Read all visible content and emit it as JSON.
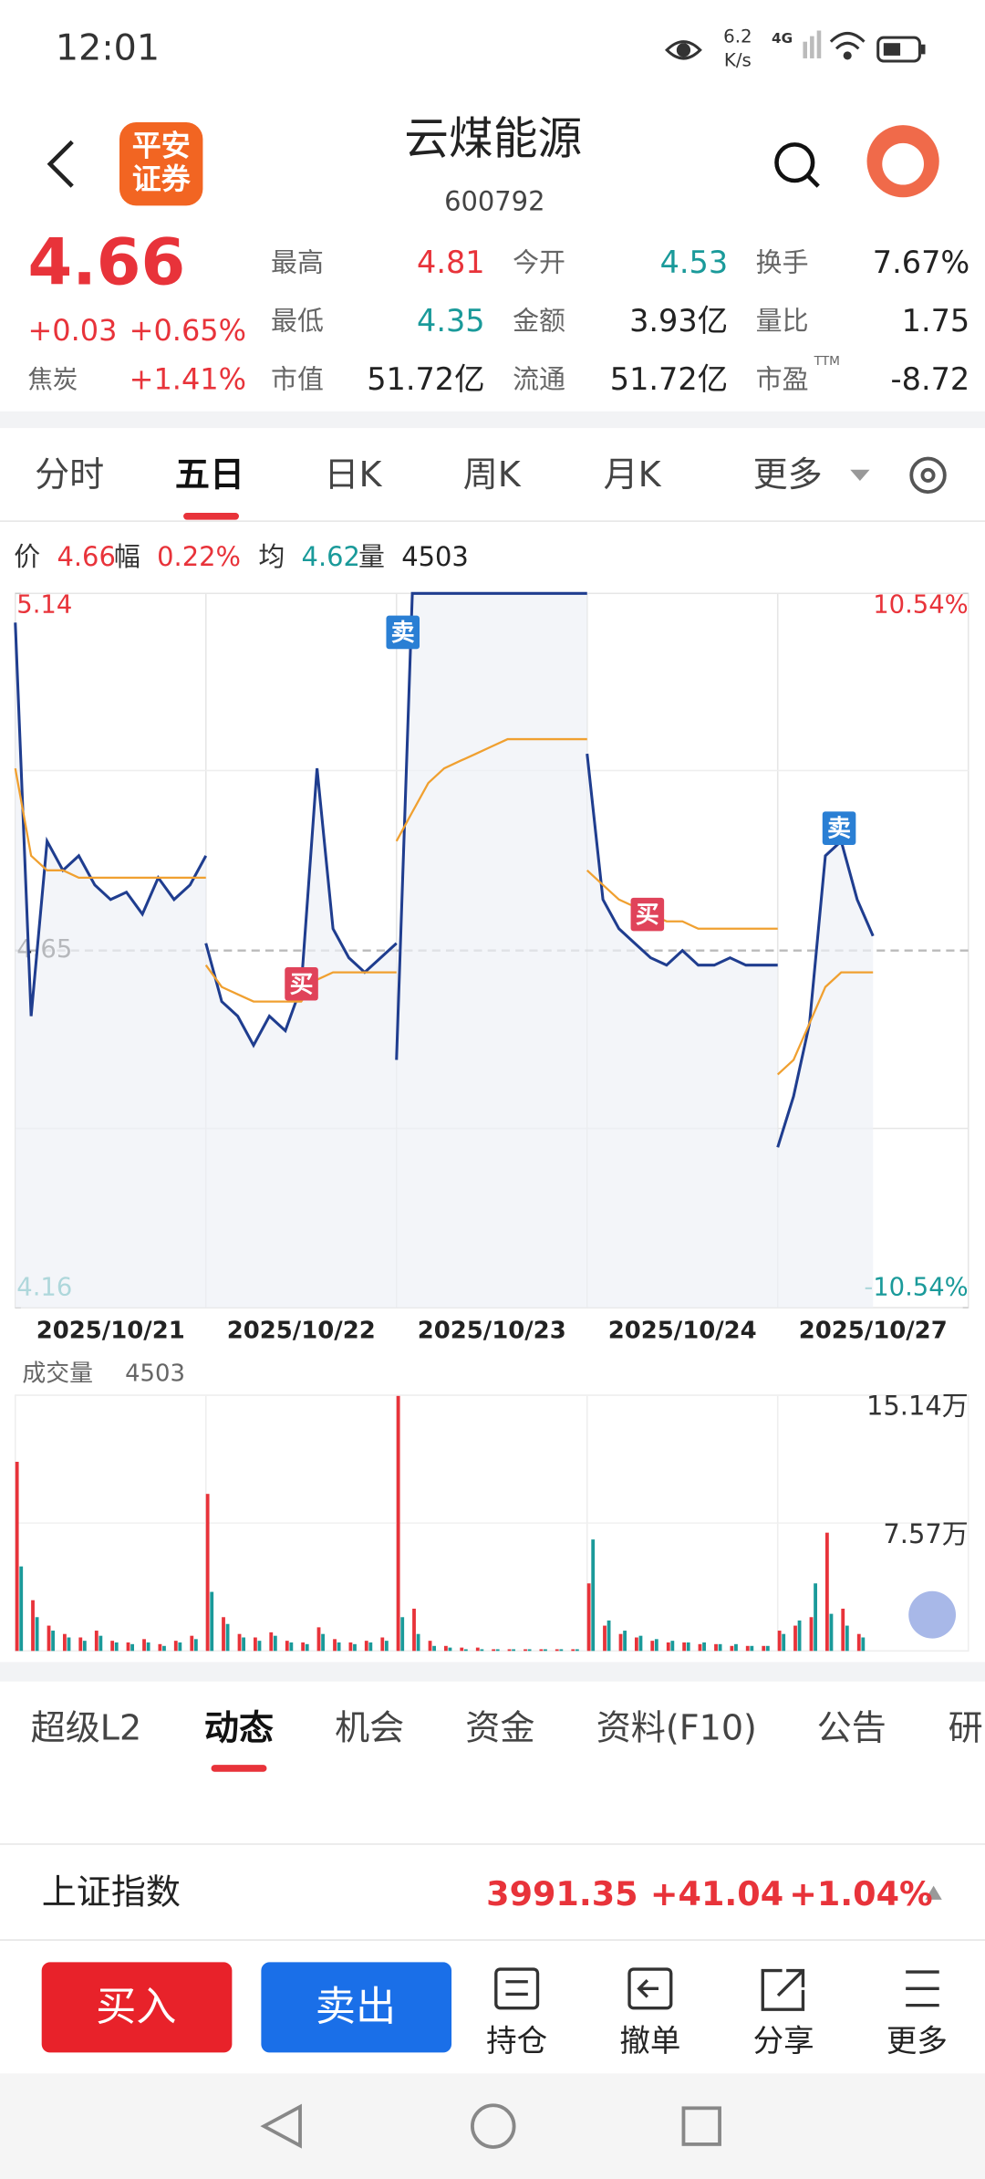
{
  "status_bar": {
    "time": "12:01",
    "net_speed": "6.2",
    "net_unit": "K/s",
    "signal": "4G"
  },
  "header": {
    "broker": [
      "平安",
      "证券"
    ],
    "name": "云煤能源",
    "code": "600792"
  },
  "quote": {
    "price": "4.66",
    "change": "+0.03",
    "change_pct": "+0.65%",
    "sector": "焦炭",
    "sector_pct": "+1.41%",
    "stats": [
      {
        "label": "最高",
        "value": "4.81"
      },
      {
        "label": "今开",
        "value": "4.53"
      },
      {
        "label": "换手",
        "value": "7.67%"
      },
      {
        "label": "最低",
        "value": "4.35"
      },
      {
        "label": "金额",
        "value": "3.93亿"
      },
      {
        "label": "量比",
        "value": "1.75"
      },
      {
        "label": "市值",
        "value": "51.72亿"
      },
      {
        "label": "流通",
        "value": "51.72亿"
      },
      {
        "label": "市盈",
        "sup": "TTM",
        "value": "-8.72"
      }
    ]
  },
  "tabs": {
    "items": [
      "分时",
      "五日",
      "日K",
      "周K",
      "月K",
      "更多"
    ],
    "active": 1
  },
  "chart_info": [
    {
      "label": "价",
      "value": "4.66"
    },
    {
      "label": "幅",
      "value": "0.22%"
    },
    {
      "label": "均",
      "value": "4.62"
    },
    {
      "label": "量",
      "value": "4503"
    }
  ],
  "chart_data": {
    "type": "line",
    "categories": [
      "2025/10/21",
      "2025/10/22",
      "2025/10/23",
      "2025/10/24",
      "2025/10/27"
    ],
    "ylim": [
      4.16,
      5.14
    ],
    "yticks": [
      5.14,
      4.65,
      4.16
    ],
    "y2lim": [
      -10.54,
      10.54
    ],
    "y2ticks": [
      {
        "value": 10.54,
        "label": "10.54%"
      },
      {
        "value": -10.54,
        "label": "-10.54%"
      }
    ],
    "series": [
      {
        "color": "#1f3d8f",
        "values": [
          [
            5.1,
            4.56,
            4.8,
            4.76,
            4.78,
            4.74,
            4.72,
            4.73,
            4.7,
            4.75,
            4.72,
            4.74,
            4.78
          ],
          [
            4.66,
            4.58,
            4.56,
            4.52,
            4.56,
            4.54,
            4.6,
            4.9,
            4.68,
            4.64,
            4.62,
            4.64,
            4.66
          ],
          [
            4.5,
            5.14,
            5.14,
            5.14,
            5.14,
            5.14,
            5.14,
            5.14,
            5.14,
            5.14,
            5.14,
            5.14,
            5.14
          ],
          [
            4.92,
            4.72,
            4.68,
            4.66,
            4.64,
            4.63,
            4.65,
            4.63,
            4.63,
            4.64,
            4.63,
            4.63,
            4.63
          ],
          [
            4.38,
            4.45,
            4.55,
            4.78,
            4.8,
            4.72,
            4.67
          ]
        ]
      },
      {
        "color": "#f0a030",
        "values": [
          [
            4.9,
            4.78,
            4.76,
            4.76,
            4.75,
            4.75,
            4.75,
            4.75,
            4.75,
            4.75,
            4.75,
            4.75,
            4.75
          ],
          [
            4.63,
            4.6,
            4.59,
            4.58,
            4.58,
            4.58,
            4.58,
            4.61,
            4.62,
            4.62,
            4.62,
            4.62,
            4.62
          ],
          [
            4.8,
            4.84,
            4.88,
            4.9,
            4.91,
            4.92,
            4.93,
            4.94,
            4.94,
            4.94,
            4.94,
            4.94,
            4.94
          ],
          [
            4.76,
            4.74,
            4.72,
            4.71,
            4.7,
            4.69,
            4.69,
            4.68,
            4.68,
            4.68,
            4.68,
            4.68,
            4.68
          ],
          [
            4.48,
            4.5,
            4.55,
            4.6,
            4.62,
            4.62,
            4.62
          ]
        ]
      }
    ],
    "annotations": [
      "买",
      "卖",
      "买",
      "卖"
    ]
  },
  "volume_chart": {
    "type": "bar",
    "title": "成交量",
    "value": "4503",
    "ylim": [
      0,
      15.14
    ],
    "yticks": [
      {
        "value": 15.14,
        "label": "15.14万"
      },
      {
        "value": 7.57,
        "label": "7.57万"
      }
    ],
    "series": [
      {
        "color": "#e8333a",
        "values": [
          [
            11.2,
            3.0,
            1.5,
            1.0,
            0.8,
            1.2,
            0.6,
            0.5,
            0.7,
            0.4,
            0.6,
            0.9
          ],
          [
            9.3,
            2.0,
            1.0,
            0.8,
            1.1,
            0.6,
            0.5,
            1.4,
            0.7,
            0.5,
            0.6,
            0.8
          ],
          [
            15.1,
            2.5,
            0.6,
            0.3,
            0.2,
            0.2,
            0.1,
            0.1,
            0.1,
            0.1,
            0.1,
            0.1
          ],
          [
            4.0,
            1.5,
            1.0,
            0.8,
            0.6,
            0.5,
            0.5,
            0.4,
            0.4,
            0.3,
            0.3,
            0.3
          ],
          [
            1.2,
            1.5,
            2.0,
            7.0,
            2.5,
            1.0
          ]
        ]
      },
      {
        "color": "#1a9a9a",
        "values": [
          [
            5.0,
            2.0,
            1.2,
            0.8,
            0.6,
            0.9,
            0.5,
            0.4,
            0.5,
            0.3,
            0.5,
            0.7
          ],
          [
            3.5,
            1.6,
            0.8,
            0.6,
            0.9,
            0.5,
            0.4,
            1.0,
            0.5,
            0.4,
            0.5,
            0.6
          ],
          [
            2.0,
            1.0,
            0.3,
            0.2,
            0.1,
            0.1,
            0.1,
            0.1,
            0.1,
            0.1,
            0.1,
            0.1
          ],
          [
            6.6,
            1.8,
            1.2,
            0.9,
            0.7,
            0.6,
            0.5,
            0.5,
            0.4,
            0.4,
            0.3,
            0.3
          ],
          [
            1.0,
            1.8,
            4.0,
            2.2,
            1.5,
            0.8
          ]
        ]
      }
    ]
  },
  "news_tabs": {
    "items": [
      "超级L2",
      "动态",
      "机会",
      "资金",
      "资料(F10)",
      "公告",
      "研"
    ],
    "active": 1
  },
  "index_bar": {
    "name": "上证指数",
    "value": "3991.35",
    "change": "+41.04",
    "change_pct": "+1.04%"
  },
  "actions": {
    "buy": "买入",
    "sell": "卖出",
    "items": [
      "持仓",
      "撤单",
      "分享",
      "更多"
    ]
  }
}
